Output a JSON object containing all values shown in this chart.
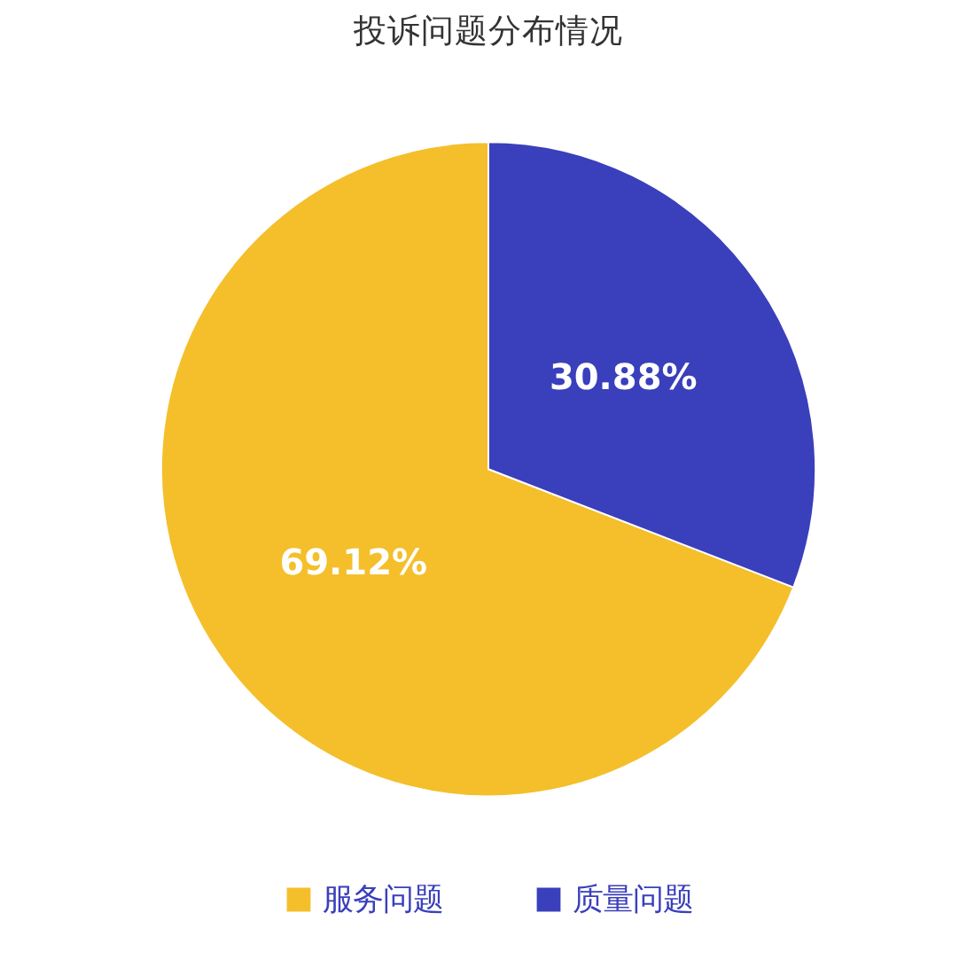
{
  "chart_data": {
    "type": "pie",
    "title": "投诉问题分布情况",
    "categories": [
      "服务问题",
      "质量问题"
    ],
    "values": [
      69.12,
      30.88
    ],
    "colors": [
      "#f4bf2b",
      "#3a3fbb"
    ],
    "value_labels": [
      "69.12%",
      "30.88%"
    ],
    "legend": "bottom"
  }
}
